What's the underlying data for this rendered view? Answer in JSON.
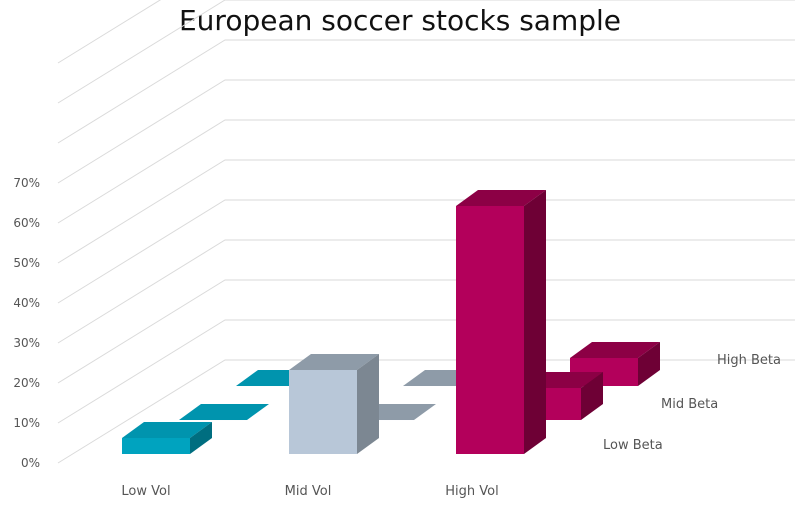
{
  "chart_data": {
    "type": "bar",
    "title": "European soccer stocks sample",
    "categories": [
      "Low Vol",
      "Mid Vol",
      "High Vol"
    ],
    "series": [
      {
        "name": "Low Beta",
        "values": [
          4,
          21,
          62
        ]
      },
      {
        "name": "Mid Beta",
        "values": [
          0,
          0,
          8
        ]
      },
      {
        "name": "High Beta",
        "values": [
          0,
          0,
          7
        ]
      }
    ],
    "y_ticks": [
      "0%",
      "10%",
      "20%",
      "30%",
      "40%",
      "50%",
      "60%",
      "70%"
    ],
    "ylim": [
      0,
      70
    ],
    "grid": true,
    "colors": {
      "Low Vol": {
        "front": "#00A3BF",
        "top": "#0094AE",
        "side": "#006E80"
      },
      "Mid Vol": {
        "front": "#B8C7D8",
        "top": "#8E9BA8",
        "side": "#7C8792"
      },
      "High Vol": {
        "front": "#B3005B",
        "top": "#8C0045",
        "side": "#6E0035"
      }
    }
  }
}
